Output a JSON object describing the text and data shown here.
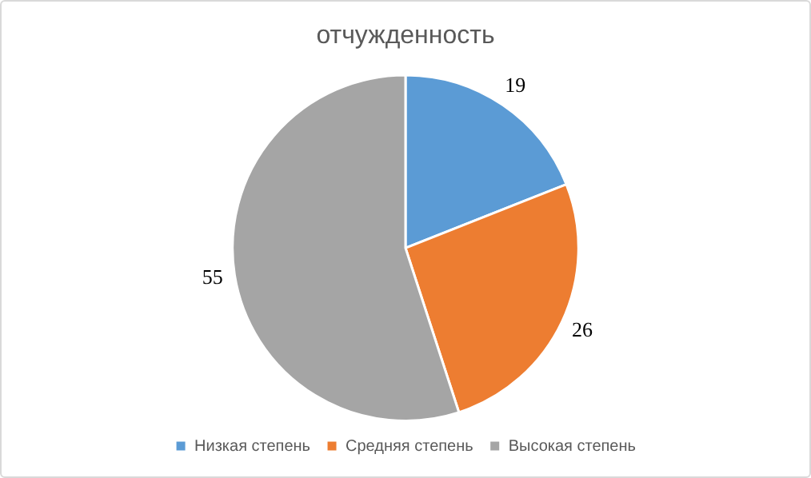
{
  "chart_data": {
    "type": "pie",
    "title": "отчужденность",
    "categories": [
      "Низкая степень",
      "Средняя степень",
      "Высокая степень"
    ],
    "values": [
      19,
      26,
      55
    ],
    "colors": [
      "#5b9bd5",
      "#ed7d31",
      "#a5a5a5"
    ],
    "data_labels": true,
    "legend": "bottom"
  }
}
